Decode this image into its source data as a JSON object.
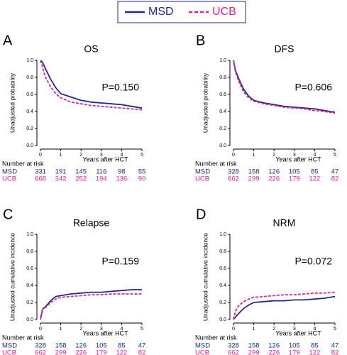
{
  "chart_data": [
    {
      "type": "line",
      "panel": "A",
      "title": "OS",
      "annotation": "P=0.150",
      "ylabel": "Unadjusted probability",
      "xlabel": "Years after HCT",
      "risk_title": "Number at risk",
      "x": [
        0,
        0.1,
        0.25,
        0.5,
        0.75,
        1,
        1.5,
        2,
        2.5,
        3,
        3.5,
        4,
        4.5,
        5
      ],
      "series": [
        {
          "name": "MSD",
          "color": "#1f2a8a",
          "dashed": false,
          "values": [
            1,
            0.98,
            0.9,
            0.78,
            0.68,
            0.61,
            0.57,
            0.53,
            0.51,
            0.5,
            0.49,
            0.48,
            0.46,
            0.44
          ],
          "at_risk": [
            331,
            191,
            145,
            116,
            98,
            55
          ]
        },
        {
          "name": "UCB",
          "color": "#d6288b",
          "dashed": true,
          "values": [
            1,
            0.92,
            0.8,
            0.69,
            0.61,
            0.56,
            0.51,
            0.49,
            0.47,
            0.46,
            0.45,
            0.44,
            0.43,
            0.42
          ],
          "at_risk": [
            668,
            342,
            252,
            194,
            136,
            90
          ]
        }
      ],
      "xlim": [
        0,
        5
      ],
      "xticks": [
        0,
        1,
        2,
        3,
        4,
        5
      ],
      "ylim": [
        0,
        1
      ],
      "yticks": [
        {
          "value": 0,
          "label": "0.0"
        },
        {
          "value": 0.2,
          "label": "0.2"
        },
        {
          "value": 0.4,
          "label": "0.4"
        },
        {
          "value": 0.6,
          "label": "0.6"
        },
        {
          "value": 0.8,
          "label": "0.8"
        },
        {
          "value": 1,
          "label": "1.0"
        }
      ]
    },
    {
      "type": "line",
      "panel": "B",
      "title": "DFS",
      "annotation": "P=0.606",
      "ylabel": "Unadjusted probability",
      "xlabel": "Years after HCT",
      "risk_title": "Number at risk",
      "x": [
        0,
        0.1,
        0.25,
        0.5,
        0.75,
        1,
        1.5,
        2,
        2.5,
        3,
        3.5,
        4,
        4.5,
        5
      ],
      "series": [
        {
          "name": "MSD",
          "color": "#1f2a8a",
          "dashed": false,
          "values": [
            1,
            0.88,
            0.79,
            0.66,
            0.58,
            0.53,
            0.5,
            0.48,
            0.46,
            0.45,
            0.44,
            0.43,
            0.41,
            0.39
          ],
          "at_risk": [
            328,
            158,
            126,
            105,
            85,
            47
          ]
        },
        {
          "name": "UCB",
          "color": "#d6288b",
          "dashed": true,
          "values": [
            1,
            0.86,
            0.76,
            0.63,
            0.56,
            0.52,
            0.49,
            0.47,
            0.45,
            0.44,
            0.43,
            0.41,
            0.4,
            0.38
          ],
          "at_risk": [
            662,
            299,
            226,
            179,
            122,
            82
          ]
        }
      ],
      "xlim": [
        0,
        5
      ],
      "xticks": [
        0,
        1,
        2,
        3,
        4,
        5
      ],
      "ylim": [
        0,
        1
      ],
      "yticks": [
        {
          "value": 0,
          "label": "0.0"
        },
        {
          "value": 0.2,
          "label": "0.2"
        },
        {
          "value": 0.4,
          "label": "0.4"
        },
        {
          "value": 0.6,
          "label": "0.6"
        },
        {
          "value": 0.8,
          "label": "0.8"
        },
        {
          "value": 1,
          "label": "1.0"
        }
      ]
    },
    {
      "type": "line",
      "panel": "C",
      "title": "Relapse",
      "annotation": "P=0.159",
      "ylabel": "Unadjusted cumulative incidence",
      "xlabel": "Years after HCT",
      "risk_title": "Number at risk",
      "x": [
        0,
        0.1,
        0.25,
        0.5,
        0.75,
        1,
        1.5,
        2,
        2.5,
        3,
        3.5,
        4,
        4.5,
        5
      ],
      "series": [
        {
          "name": "MSD",
          "color": "#1f2a8a",
          "dashed": false,
          "values": [
            0,
            0.12,
            0.15,
            0.22,
            0.27,
            0.28,
            0.3,
            0.31,
            0.32,
            0.32,
            0.33,
            0.34,
            0.35,
            0.35
          ],
          "at_risk": [
            328,
            158,
            126,
            105,
            85,
            47
          ]
        },
        {
          "name": "UCB",
          "color": "#d6288b",
          "dashed": true,
          "values": [
            0,
            0.12,
            0.14,
            0.2,
            0.24,
            0.26,
            0.27,
            0.28,
            0.29,
            0.29,
            0.3,
            0.3,
            0.3,
            0.3
          ],
          "at_risk": [
            662,
            299,
            226,
            179,
            122,
            82
          ]
        }
      ],
      "xlim": [
        0,
        5
      ],
      "xticks": [
        0,
        1,
        2,
        3,
        4,
        5
      ],
      "ylim": [
        0,
        1
      ],
      "yticks": [
        {
          "value": 0,
          "label": "0.0"
        },
        {
          "value": 0.2,
          "label": "0.2"
        },
        {
          "value": 0.4,
          "label": "0.4"
        },
        {
          "value": 0.6,
          "label": "0.6"
        },
        {
          "value": 0.8,
          "label": "0.8"
        },
        {
          "value": 1,
          "label": "1.0"
        }
      ]
    },
    {
      "type": "line",
      "panel": "D",
      "title": "NRM",
      "annotation": "P=0.072",
      "ylabel": "Unadjusted cumulative incidence",
      "xlabel": "Years after HCT",
      "risk_title": "Number at risk",
      "x": [
        0,
        0.1,
        0.25,
        0.5,
        0.75,
        1,
        1.5,
        2,
        2.5,
        3,
        3.5,
        4,
        4.5,
        5
      ],
      "series": [
        {
          "name": "MSD",
          "color": "#1f2a8a",
          "dashed": false,
          "values": [
            0,
            0.03,
            0.07,
            0.13,
            0.17,
            0.2,
            0.21,
            0.22,
            0.22,
            0.23,
            0.23,
            0.24,
            0.25,
            0.27
          ],
          "at_risk": [
            328,
            158,
            126,
            105,
            85,
            47
          ]
        },
        {
          "name": "UCB",
          "color": "#d6288b",
          "dashed": true,
          "values": [
            0,
            0.1,
            0.16,
            0.21,
            0.24,
            0.26,
            0.27,
            0.28,
            0.29,
            0.29,
            0.3,
            0.31,
            0.31,
            0.32
          ],
          "at_risk": [
            662,
            299,
            226,
            179,
            122,
            82
          ]
        }
      ],
      "xlim": [
        0,
        5
      ],
      "xticks": [
        0,
        1,
        2,
        3,
        4,
        5
      ],
      "ylim": [
        0,
        1
      ],
      "yticks": [
        {
          "value": 0,
          "label": "0.0"
        },
        {
          "value": 0.2,
          "label": "0.2"
        },
        {
          "value": 0.4,
          "label": "0.4"
        },
        {
          "value": 0.6,
          "label": "0.6"
        },
        {
          "value": 0.8,
          "label": "0.8"
        },
        {
          "value": 1,
          "label": "1.0"
        }
      ]
    }
  ]
}
